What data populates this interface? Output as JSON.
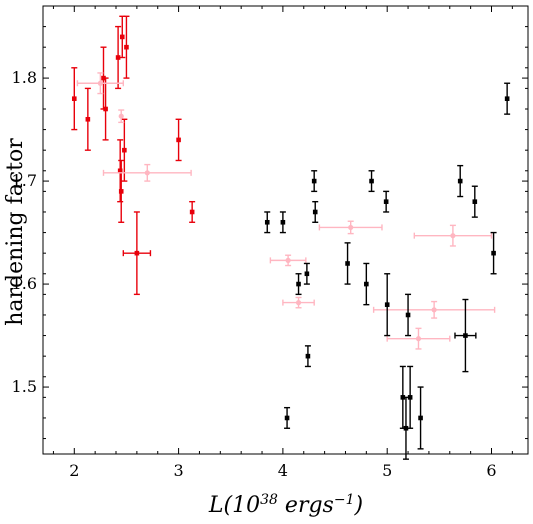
{
  "chart_data": {
    "type": "scatter",
    "xlabel": "L(10^38 ergs^-1)",
    "xlabel_parts": {
      "prefix": "L(10",
      "exp1": "38",
      "mid": " ergs",
      "exp2": "−1",
      "suffix": ")"
    },
    "ylabel": "hardening factor",
    "xlim": [
      1.7,
      6.35
    ],
    "ylim": [
      1.435,
      1.87
    ],
    "xticks": [
      2,
      3,
      4,
      5,
      6
    ],
    "xtick_labels": [
      "2",
      "3",
      "4",
      "5",
      "6"
    ],
    "yticks": [
      1.5,
      1.6,
      1.7,
      1.8
    ],
    "ytick_labels": [
      "1.5",
      "1.6",
      "1.7",
      "1.8"
    ],
    "grid": false,
    "series": [
      {
        "color": "#e8000b",
        "marker": "square",
        "points": [
          {
            "x": 2.0,
            "y": 1.78,
            "yerr": 0.03,
            "xerr": 0
          },
          {
            "x": 2.13,
            "y": 1.76,
            "yerr": 0.03,
            "xerr": 0
          },
          {
            "x": 2.28,
            "y": 1.8,
            "yerr": 0.03,
            "xerr": 0
          },
          {
            "x": 2.3,
            "y": 1.77,
            "yerr": 0.03,
            "xerr": 0
          },
          {
            "x": 2.42,
            "y": 1.82,
            "yerr": 0.03,
            "xerr": 0
          },
          {
            "x": 2.44,
            "y": 1.71,
            "yerr": 0.03,
            "xerr": 0
          },
          {
            "x": 2.45,
            "y": 1.69,
            "yerr": 0.03,
            "xerr": 0
          },
          {
            "x": 2.46,
            "y": 1.84,
            "yerr": 0.02,
            "xerr": 0
          },
          {
            "x": 2.48,
            "y": 1.73,
            "yerr": 0.03,
            "xerr": 0
          },
          {
            "x": 2.5,
            "y": 1.83,
            "yerr": 0.03,
            "xerr": 0
          },
          {
            "x": 2.6,
            "y": 1.63,
            "yerr": 0.04,
            "xerr": 0.13
          },
          {
            "x": 3.0,
            "y": 1.74,
            "yerr": 0.02,
            "xerr": 0
          },
          {
            "x": 3.13,
            "y": 1.67,
            "yerr": 0.01,
            "xerr": 0
          }
        ]
      },
      {
        "color": "#ffb6c1",
        "marker": "circle",
        "points": [
          {
            "x": 2.25,
            "y": 1.795,
            "yerr": 0.01,
            "xerr": 0.22
          },
          {
            "x": 2.45,
            "y": 1.763,
            "yerr": 0.006,
            "xerr": 0
          },
          {
            "x": 2.7,
            "y": 1.708,
            "yerr": 0.008,
            "xerr": 0.42
          },
          {
            "x": 4.05,
            "y": 1.623,
            "yerr": 0.005,
            "xerr": 0.17
          },
          {
            "x": 4.15,
            "y": 1.582,
            "yerr": 0.005,
            "xerr": 0.15
          },
          {
            "x": 4.65,
            "y": 1.655,
            "yerr": 0.006,
            "xerr": 0.3
          },
          {
            "x": 5.3,
            "y": 1.547,
            "yerr": 0.01,
            "xerr": 0.3
          },
          {
            "x": 5.45,
            "y": 1.575,
            "yerr": 0.008,
            "xerr": 0.58
          },
          {
            "x": 5.63,
            "y": 1.647,
            "yerr": 0.01,
            "xerr": 0.37
          }
        ]
      },
      {
        "color": "#000000",
        "marker": "square",
        "points": [
          {
            "x": 3.85,
            "y": 1.66,
            "yerr": 0.01,
            "xerr": 0
          },
          {
            "x": 4.0,
            "y": 1.66,
            "yerr": 0.01,
            "xerr": 0
          },
          {
            "x": 4.04,
            "y": 1.47,
            "yerr": 0.01,
            "xerr": 0
          },
          {
            "x": 4.15,
            "y": 1.6,
            "yerr": 0.01,
            "xerr": 0
          },
          {
            "x": 4.23,
            "y": 1.61,
            "yerr": 0.01,
            "xerr": 0
          },
          {
            "x": 4.24,
            "y": 1.53,
            "yerr": 0.01,
            "xerr": 0
          },
          {
            "x": 4.3,
            "y": 1.7,
            "yerr": 0.01,
            "xerr": 0
          },
          {
            "x": 4.31,
            "y": 1.67,
            "yerr": 0.01,
            "xerr": 0
          },
          {
            "x": 4.62,
            "y": 1.62,
            "yerr": 0.02,
            "xerr": 0
          },
          {
            "x": 4.8,
            "y": 1.6,
            "yerr": 0.02,
            "xerr": 0
          },
          {
            "x": 4.85,
            "y": 1.7,
            "yerr": 0.01,
            "xerr": 0
          },
          {
            "x": 4.99,
            "y": 1.68,
            "yerr": 0.01,
            "xerr": 0
          },
          {
            "x": 5.0,
            "y": 1.58,
            "yerr": 0.03,
            "xerr": 0
          },
          {
            "x": 5.15,
            "y": 1.49,
            "yerr": 0.03,
            "xerr": 0
          },
          {
            "x": 5.18,
            "y": 1.46,
            "yerr": 0.03,
            "xerr": 0
          },
          {
            "x": 5.2,
            "y": 1.57,
            "yerr": 0.02,
            "xerr": 0
          },
          {
            "x": 5.22,
            "y": 1.49,
            "yerr": 0.03,
            "xerr": 0
          },
          {
            "x": 5.32,
            "y": 1.47,
            "yerr": 0.03,
            "xerr": 0
          },
          {
            "x": 5.7,
            "y": 1.7,
            "yerr": 0.015,
            "xerr": 0
          },
          {
            "x": 5.75,
            "y": 1.55,
            "yerr": 0.035,
            "xerr": 0.1
          },
          {
            "x": 5.84,
            "y": 1.68,
            "yerr": 0.015,
            "xerr": 0
          },
          {
            "x": 6.02,
            "y": 1.63,
            "yerr": 0.02,
            "xerr": 0
          },
          {
            "x": 6.15,
            "y": 1.78,
            "yerr": 0.015,
            "xerr": 0
          }
        ]
      }
    ]
  }
}
